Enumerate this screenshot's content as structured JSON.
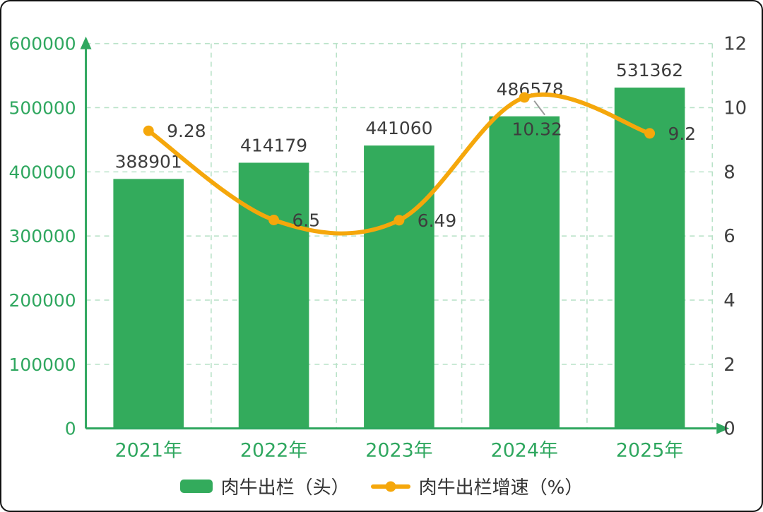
{
  "chart_data": {
    "type": "bar",
    "subtype": "combo-bar-line",
    "categories": [
      "2021年",
      "2022年",
      "2023年",
      "2024年",
      "2025年"
    ],
    "series": [
      {
        "name": "肉牛出栏（头）",
        "type": "bar",
        "axis": "left",
        "values": [
          388901,
          414179,
          441060,
          486578,
          531362
        ],
        "color": "#33ab5c"
      },
      {
        "name": "肉牛出栏增速（%）",
        "type": "line",
        "axis": "right",
        "values": [
          9.28,
          6.5,
          6.49,
          10.32,
          9.2
        ],
        "color": "#f5a70b"
      }
    ],
    "left_axis": {
      "min": 0,
      "max": 600000,
      "step": 100000,
      "ticks": [
        "0",
        "100000",
        "200000",
        "300000",
        "400000",
        "500000",
        "600000"
      ],
      "color": "#2fa75f"
    },
    "right_axis": {
      "min": 0,
      "max": 12,
      "step": 2,
      "ticks": [
        "0",
        "2",
        "4",
        "6",
        "8",
        "10",
        "12"
      ],
      "color": "#3f3f3f"
    },
    "grid": {
      "dashed": true,
      "color": "#b9e2c8",
      "vertical": true,
      "horizontal": true
    },
    "axis_color": "#2fa75f",
    "category_label_color": "#2fa75f",
    "value_label_color": "#3d3d3d",
    "leader_line_color": "#9a9a9a",
    "legend_position": "bottom",
    "title": "",
    "xlabel": "",
    "ylabel_left": "",
    "ylabel_right": ""
  },
  "legend": {
    "bar_label": "肉牛出栏（头）",
    "line_label": "肉牛出栏增速（%）"
  }
}
